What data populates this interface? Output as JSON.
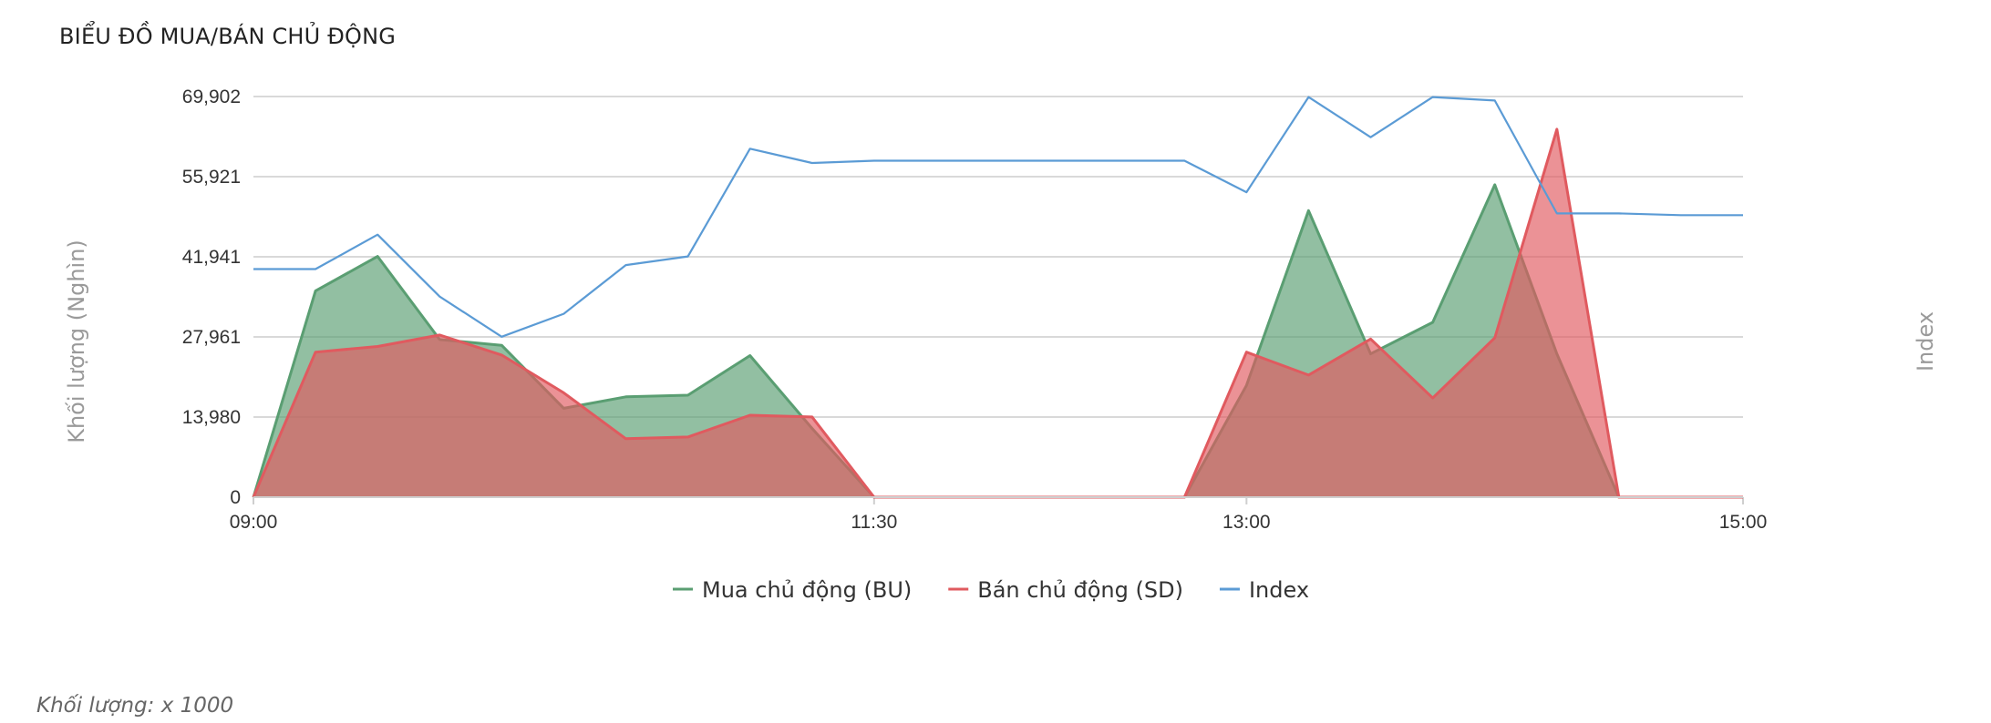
{
  "title": "BIỂU ĐỒ MUA/BÁN CHỦ ĐỘNG",
  "footnote": "Khối lượng: x 1000",
  "colors": {
    "buy": "#5a9e72",
    "sell": "#e05a5f",
    "index": "#5b9bd5",
    "grid": "#d9d9d9"
  },
  "chart_data": {
    "type": "area",
    "ylabel": "Khối lượng (Nghìn)",
    "y2label": "Index",
    "ylim": [
      0,
      69902
    ],
    "yticks": [
      0,
      13980,
      27961,
      41941,
      55921,
      69902
    ],
    "ytick_labels": [
      "0",
      "13,980",
      "27,961",
      "41,941",
      "55,921",
      "69,902"
    ],
    "xticks": [
      "09:00",
      "11:30",
      "13:00",
      "15:00"
    ],
    "legend_position": "bottom-center",
    "grid": true,
    "x": [
      "09:00",
      "09:15",
      "09:30",
      "09:45",
      "10:00",
      "10:15",
      "10:30",
      "10:45",
      "11:00",
      "11:15",
      "11:30",
      "11:45",
      "12:00",
      "12:15",
      "12:30",
      "12:45",
      "13:00",
      "13:15",
      "13:30",
      "13:45",
      "14:00",
      "14:15",
      "14:30",
      "14:45",
      "15:00"
    ],
    "series": [
      {
        "name": "Mua chủ động (BU)",
        "type": "area",
        "values": [
          0,
          36000,
          42000,
          27500,
          26500,
          15500,
          17500,
          17800,
          24700,
          12000,
          0,
          0,
          0,
          0,
          0,
          0,
          19500,
          50000,
          25000,
          30500,
          54500,
          25000,
          0,
          0,
          0
        ]
      },
      {
        "name": "Bán chủ động (SD)",
        "type": "area",
        "values": [
          0,
          25300,
          26300,
          28300,
          24800,
          18200,
          10200,
          10500,
          14300,
          14000,
          0,
          0,
          0,
          0,
          0,
          0,
          25300,
          21300,
          27600,
          17300,
          27800,
          64200,
          0,
          0,
          0
        ]
      },
      {
        "name": "Index",
        "type": "line",
        "values": [
          39800,
          39800,
          45800,
          35000,
          28000,
          32000,
          40500,
          42000,
          60800,
          58300,
          58700,
          58700,
          58700,
          58700,
          58700,
          58700,
          53200,
          69800,
          62800,
          69800,
          69200,
          49500,
          49500,
          49200,
          49200
        ]
      }
    ]
  }
}
